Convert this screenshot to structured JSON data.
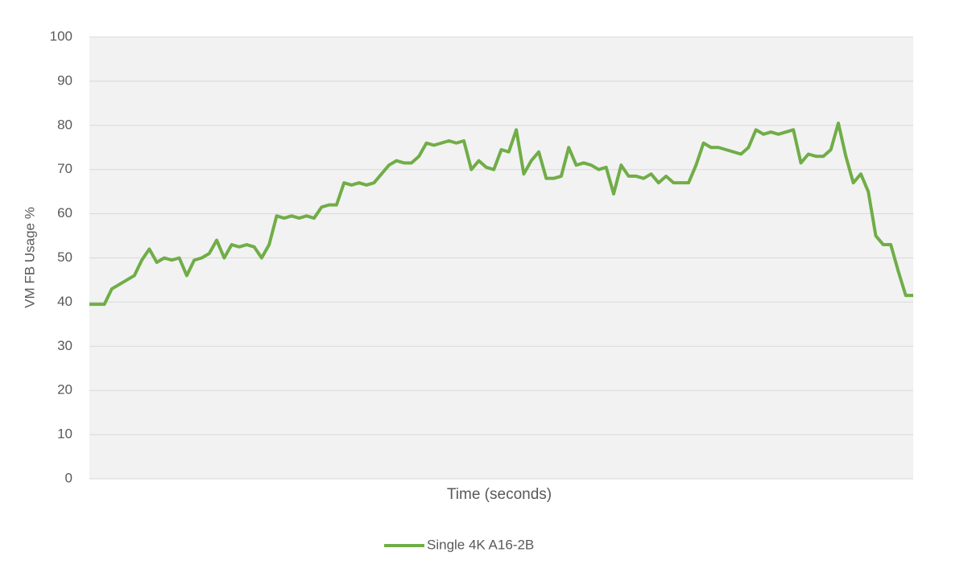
{
  "chart_data": {
    "type": "line",
    "y_label": "VM FB Usage %",
    "x_label": "Time (seconds)",
    "categories": [
      null,
      null,
      null,
      null,
      null,
      null,
      null,
      null,
      null,
      null,
      null,
      null,
      null,
      null,
      null,
      null,
      null,
      null,
      null,
      null,
      null,
      null,
      null,
      null,
      null,
      null,
      null,
      null,
      null,
      null,
      null,
      null,
      null,
      null,
      null,
      null,
      null,
      null,
      null,
      null,
      null,
      null,
      null,
      null,
      null,
      null,
      null,
      null,
      null,
      null,
      null,
      null,
      null,
      null,
      null,
      null,
      null,
      null,
      null,
      null,
      null,
      null,
      null,
      null,
      null,
      null,
      null,
      null,
      null,
      null,
      null,
      null,
      null,
      null,
      null,
      null,
      null,
      null,
      null,
      null,
      null,
      null,
      null,
      null,
      null,
      null,
      null,
      null,
      null,
      null,
      null,
      null,
      null,
      null,
      null,
      null,
      null,
      null,
      null,
      null,
      null,
      null,
      null,
      null,
      null,
      null,
      null,
      null,
      null,
      null,
      null
    ],
    "series": [
      {
        "name": "Single 4K A16-2B",
        "color": "#70ad47",
        "values": [
          39.5,
          39.5,
          39.5,
          43,
          44,
          45,
          46,
          49.5,
          52,
          49,
          50,
          49.5,
          50,
          46,
          49.5,
          50,
          51,
          54,
          50,
          53,
          52.5,
          53,
          52.5,
          50,
          53,
          59.5,
          59,
          59.5,
          59,
          59.5,
          59,
          61.5,
          62,
          62,
          67,
          66.5,
          67,
          66.5,
          67,
          69,
          71,
          72,
          71.5,
          71.5,
          73,
          76,
          75.5,
          76,
          76.5,
          76,
          76.5,
          70,
          72,
          70.5,
          70,
          74.5,
          74,
          79,
          69,
          72,
          74,
          68,
          68,
          68.5,
          75,
          71,
          71.5,
          71,
          70,
          70.5,
          64.5,
          71,
          68.5,
          68.5,
          68,
          69,
          67,
          68.5,
          67,
          67,
          67,
          71,
          76,
          75,
          75,
          74.5,
          74,
          73.5,
          75,
          79,
          78,
          78.5,
          78,
          78.5,
          79,
          71.5,
          73.5,
          73,
          73,
          74.5,
          80.5,
          73,
          67,
          69,
          65,
          55,
          53,
          53,
          47,
          41.5,
          41.5
        ]
      }
    ],
    "ylim": [
      0,
      100
    ],
    "yticks": [
      0,
      10,
      20,
      30,
      40,
      50,
      60,
      70,
      80,
      90,
      100
    ],
    "grid": true,
    "legend": "bottom"
  }
}
